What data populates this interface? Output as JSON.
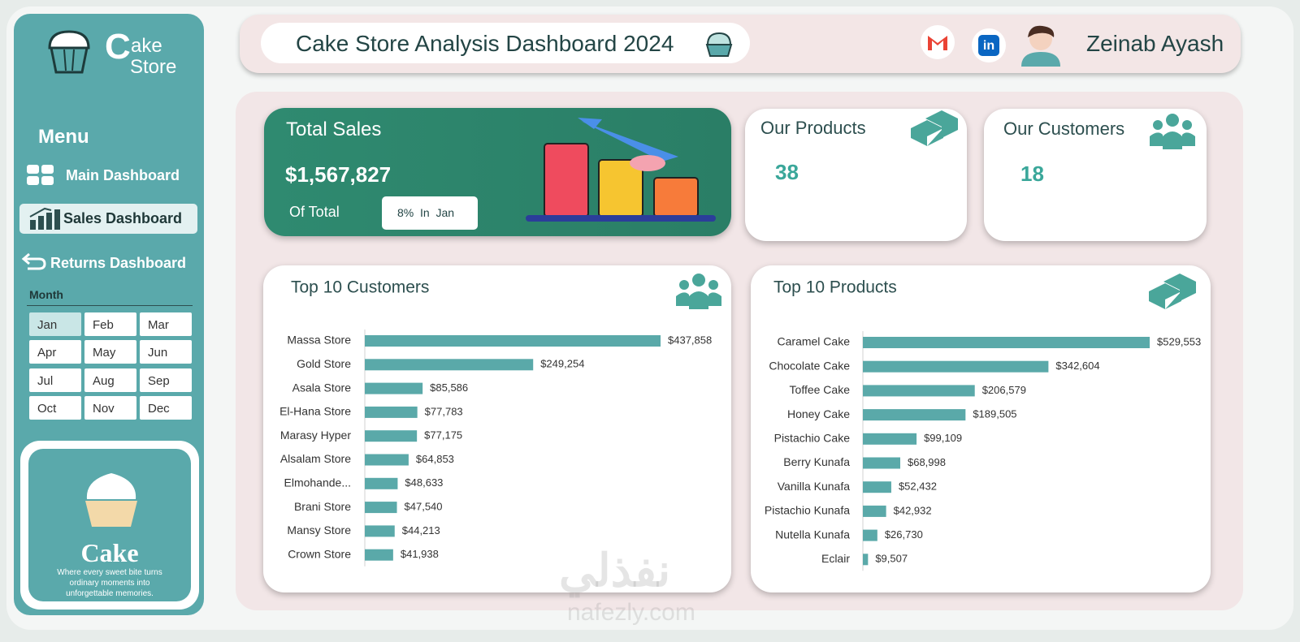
{
  "logo": {
    "initial": "C",
    "rest": "ake",
    "line2": "Store"
  },
  "menu": {
    "title": "Menu",
    "items": [
      "Main Dashboard",
      "Sales Dashboard",
      "Returns Dashboard"
    ]
  },
  "slicer": {
    "title": "Month",
    "months": [
      "Jan",
      "Feb",
      "Mar",
      "Apr",
      "May",
      "Jun",
      "Jul",
      "Aug",
      "Sep",
      "Oct",
      "Nov",
      "Dec"
    ]
  },
  "promo": {
    "title": "Cake",
    "tagline": "Where every sweet bite turns ordinary moments into unforgettable memories."
  },
  "header": {
    "title": "Cake Store Analysis Dashboard 2024",
    "user": "Zeinab Ayash"
  },
  "kpis": {
    "total_sales": {
      "label": "Total Sales",
      "value": "$1,567,827",
      "sub": "Of Total",
      "badge": "8%  In  Jan"
    },
    "products": {
      "label": "Our Products",
      "value": 38
    },
    "customers": {
      "label": "Our Customers",
      "value": 18
    }
  },
  "watermark": {
    "arabic": "نفذلي",
    "site": "nafezly.com"
  },
  "chart_data": [
    {
      "type": "bar",
      "title": "Top 10 Customers",
      "color": "#5aa9a9",
      "categories": [
        "Massa Store",
        "Gold Store",
        "Asala Store",
        "El-Hana Store",
        "Marasy Hyper",
        "Alsalam Store",
        "Elmohande...",
        "Brani Store",
        "Mansy Store",
        "Crown Store"
      ],
      "values": [
        437858,
        249254,
        85586,
        77783,
        77175,
        64853,
        48633,
        47540,
        44213,
        41938
      ],
      "value_labels": [
        "$437,858",
        "$249,254",
        "$85,586",
        "$77,783",
        "$77,175",
        "$64,853",
        "$48,633",
        "$47,540",
        "$44,213",
        "$41,938"
      ]
    },
    {
      "type": "bar",
      "title": "Top 10 Products",
      "color": "#5aa9a9",
      "categories": [
        "Caramel Cake",
        "Chocolate Cake",
        "Toffee Cake",
        "Honey Cake",
        "Pistachio Cake",
        "Berry Kunafa",
        "Vanilla Kunafa",
        "Pistachio Kunafa",
        "Nutella Kunafa",
        "Eclair"
      ],
      "values": [
        529553,
        342604,
        206579,
        189505,
        99109,
        68998,
        52432,
        42932,
        26730,
        9507
      ],
      "value_labels": [
        "$529,553",
        "$342,604",
        "$206,579",
        "$189,505",
        "$99,109",
        "$68,998",
        "$52,432",
        "$42,932",
        "$26,730",
        "$9,507"
      ]
    }
  ]
}
